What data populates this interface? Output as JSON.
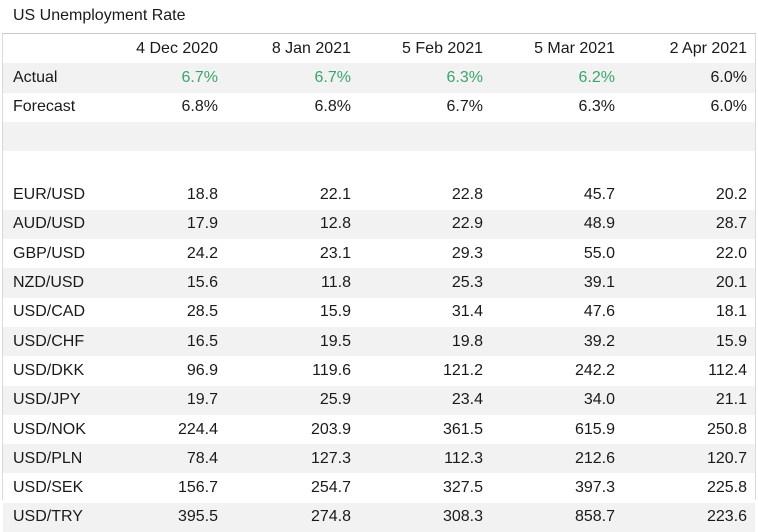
{
  "title": "US Unemployment Rate",
  "columns": [
    "",
    "4 Dec 2020",
    "8 Jan 2021",
    "5 Feb 2021",
    "5 Mar 2021",
    "2 Apr 2021"
  ],
  "actual": {
    "label": "Actual",
    "values": [
      "6.7%",
      "6.7%",
      "6.3%",
      "6.2%",
      "6.0%"
    ],
    "highlight_color": "#3aa56a",
    "highlighted": [
      true,
      true,
      true,
      true,
      false
    ]
  },
  "forecast": {
    "label": "Forecast",
    "values": [
      "6.8%",
      "6.8%",
      "6.7%",
      "6.3%",
      "6.0%"
    ]
  },
  "pairs": [
    {
      "label": "EUR/USD",
      "values": [
        "18.8",
        "22.1",
        "22.8",
        "45.7",
        "20.2"
      ]
    },
    {
      "label": "AUD/USD",
      "values": [
        "17.9",
        "12.8",
        "22.9",
        "48.9",
        "28.7"
      ]
    },
    {
      "label": "GBP/USD",
      "values": [
        "24.2",
        "23.1",
        "29.3",
        "55.0",
        "22.0"
      ]
    },
    {
      "label": "NZD/USD",
      "values": [
        "15.6",
        "11.8",
        "25.3",
        "39.1",
        "20.1"
      ]
    },
    {
      "label": "USD/CAD",
      "values": [
        "28.5",
        "15.9",
        "31.4",
        "47.6",
        "18.1"
      ]
    },
    {
      "label": "USD/CHF",
      "values": [
        "16.5",
        "19.5",
        "19.8",
        "39.2",
        "15.9"
      ]
    },
    {
      "label": "USD/DKK",
      "values": [
        "96.9",
        "119.6",
        "121.2",
        "242.2",
        "112.4"
      ]
    },
    {
      "label": "USD/JPY",
      "values": [
        "19.7",
        "25.9",
        "23.4",
        "34.0",
        "21.1"
      ]
    },
    {
      "label": "USD/NOK",
      "values": [
        "224.4",
        "203.9",
        "361.5",
        "615.9",
        "250.8"
      ]
    },
    {
      "label": "USD/PLN",
      "values": [
        "78.4",
        "127.3",
        "112.3",
        "212.6",
        "120.7"
      ]
    },
    {
      "label": "USD/SEK",
      "values": [
        "156.7",
        "254.7",
        "327.5",
        "397.3",
        "225.8"
      ]
    },
    {
      "label": "USD/TRY",
      "values": [
        "395.5",
        "274.8",
        "308.3",
        "858.7",
        "223.6"
      ]
    }
  ]
}
